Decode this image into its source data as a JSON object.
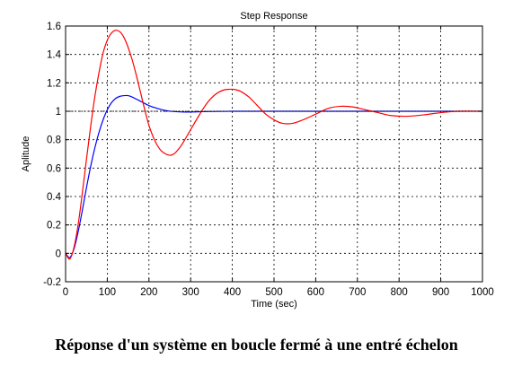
{
  "caption": "Réponse d'un système en boucle fermé à une entré échelon",
  "chart_data": {
    "type": "line",
    "title": "Step Response",
    "xlabel": "Time (sec)",
    "ylabel": "Aplitude",
    "xlim": [
      0,
      1000
    ],
    "ylim": [
      -0.2,
      1.6
    ],
    "x_ticks": [
      0,
      100,
      200,
      300,
      400,
      500,
      600,
      700,
      800,
      900,
      1000
    ],
    "y_ticks": [
      -0.2,
      0,
      0.2,
      0.4,
      0.6,
      0.8,
      1,
      1.2,
      1.4,
      1.6
    ],
    "y_tick_labels": [
      "-0.2",
      "0",
      "0.2",
      "0.4",
      "0.6",
      "0.8",
      "1",
      "1.2",
      "1.4",
      "1.6"
    ],
    "grid": true,
    "grid_style": "dotted",
    "reference_line": {
      "y": 1,
      "style": "dotted",
      "color": "#000000"
    },
    "series": [
      {
        "color": "#0000ff",
        "x": [
          0,
          10,
          20,
          30,
          40,
          50,
          60,
          70,
          80,
          90,
          100,
          110,
          120,
          130,
          140,
          150,
          160,
          170,
          180,
          190,
          200,
          220,
          240,
          260,
          280,
          300,
          340,
          400,
          500,
          600,
          800,
          1000
        ],
        "y": [
          0,
          -0.03,
          0.03,
          0.15,
          0.3,
          0.46,
          0.61,
          0.74,
          0.85,
          0.94,
          1.01,
          1.06,
          1.09,
          1.105,
          1.11,
          1.11,
          1.1,
          1.085,
          1.07,
          1.055,
          1.04,
          1.02,
          1.005,
          0.998,
          0.995,
          0.995,
          0.998,
          1,
          1,
          1,
          1,
          1
        ]
      },
      {
        "color": "#ff0000",
        "x": [
          0,
          10,
          20,
          30,
          40,
          50,
          60,
          70,
          80,
          90,
          100,
          110,
          120,
          130,
          140,
          150,
          160,
          170,
          180,
          190,
          200,
          210,
          220,
          230,
          240,
          250,
          260,
          270,
          280,
          290,
          300,
          320,
          340,
          360,
          380,
          400,
          410,
          420,
          440,
          460,
          480,
          500,
          520,
          545,
          570,
          600,
          630,
          660,
          690,
          720,
          750,
          780,
          820,
          860,
          900,
          940,
          1000
        ],
        "y": [
          0,
          -0.04,
          0.04,
          0.2,
          0.42,
          0.66,
          0.89,
          1.1,
          1.27,
          1.41,
          1.5,
          1.55,
          1.57,
          1.56,
          1.52,
          1.45,
          1.36,
          1.25,
          1.13,
          1.01,
          0.9,
          0.82,
          0.76,
          0.72,
          0.7,
          0.69,
          0.7,
          0.73,
          0.77,
          0.82,
          0.87,
          0.97,
          1.06,
          1.12,
          1.15,
          1.155,
          1.15,
          1.14,
          1.1,
          1.04,
          0.98,
          0.94,
          0.915,
          0.915,
          0.94,
          0.98,
          1.02,
          1.035,
          1.03,
          1.01,
          0.99,
          0.97,
          0.965,
          0.975,
          0.99,
          1,
          1
        ]
      }
    ]
  }
}
